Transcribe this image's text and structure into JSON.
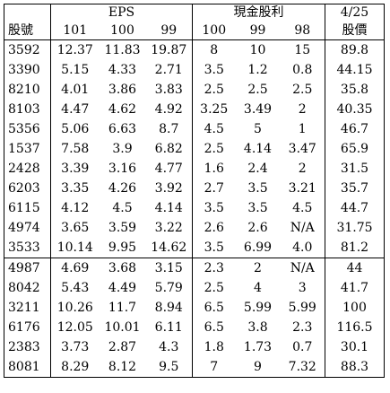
{
  "header": {
    "stock_id_label": "股號",
    "eps_group": "EPS",
    "dividend_group": "現金股利",
    "price_top": "4/25",
    "price_bottom": "股價",
    "years": [
      "101",
      "100",
      "99"
    ],
    "div_years": [
      "100",
      "99",
      "98"
    ]
  },
  "rows": [
    [
      "3592",
      "12.37",
      "11.83",
      "19.87",
      "8",
      "10",
      "15",
      "89.8"
    ],
    [
      "3390",
      "5.15",
      "4.33",
      "2.71",
      "3.5",
      "1.2",
      "0.8",
      "44.15"
    ],
    [
      "8210",
      "4.01",
      "3.86",
      "3.83",
      "2.5",
      "2.5",
      "2.5",
      "35.8"
    ],
    [
      "8103",
      "4.47",
      "4.62",
      "4.92",
      "3.25",
      "3.49",
      "2",
      "40.35"
    ],
    [
      "5356",
      "5.06",
      "6.63",
      "8.7",
      "4.5",
      "5",
      "1",
      "46.7"
    ],
    [
      "1537",
      "7.58",
      "3.9",
      "6.82",
      "2.5",
      "4.14",
      "3.47",
      "65.9"
    ],
    [
      "2428",
      "3.39",
      "3.16",
      "4.77",
      "1.6",
      "2.4",
      "2",
      "31.5"
    ],
    [
      "6203",
      "3.35",
      "4.26",
      "3.92",
      "2.7",
      "3.5",
      "3.21",
      "35.7"
    ],
    [
      "6115",
      "4.12",
      "4.5",
      "4.14",
      "3.5",
      "3.5",
      "4.5",
      "44.7"
    ],
    [
      "4974",
      "3.65",
      "3.59",
      "3.22",
      "2.6",
      "2.6",
      "N/A",
      "31.75"
    ],
    [
      "3533",
      "10.14",
      "9.95",
      "14.62",
      "3.5",
      "6.99",
      "4.0",
      "81.2"
    ],
    [
      "4987",
      "4.69",
      "3.68",
      "3.15",
      "2.3",
      "2",
      "N/A",
      "44"
    ],
    [
      "8042",
      "5.43",
      "4.49",
      "5.79",
      "2.5",
      "4",
      "3",
      "41.7"
    ],
    [
      "3211",
      "10.26",
      "11.7",
      "8.94",
      "6.5",
      "5.99",
      "5.99",
      "100"
    ],
    [
      "6176",
      "12.05",
      "10.01",
      "6.11",
      "6.5",
      "3.8",
      "2.3",
      "116.5"
    ],
    [
      "2383",
      "3.73",
      "2.87",
      "4.3",
      "1.8",
      "1.73",
      "0.7",
      "30.1"
    ],
    [
      "8081",
      "8.29",
      "8.12",
      "9.5",
      "7",
      "9",
      "7.32",
      "88.3"
    ]
  ],
  "separator_after_row": 10
}
